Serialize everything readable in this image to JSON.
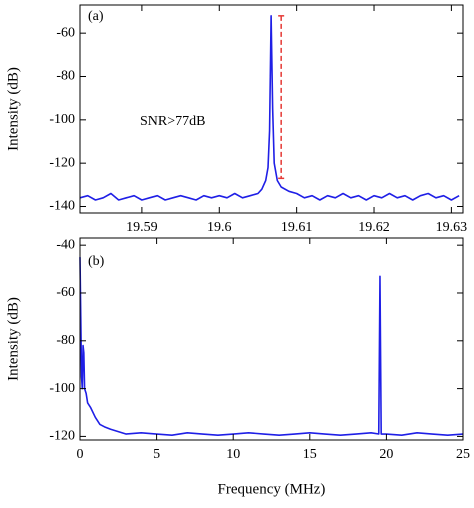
{
  "chart_data": [
    {
      "type": "line",
      "annotations": [
        "(a)",
        "SNR>77dB"
      ],
      "ylabel": "Intensity (dB)",
      "xlim": [
        19.582,
        19.6315
      ],
      "xticks": [
        19.59,
        19.6,
        19.61,
        19.62,
        19.63
      ],
      "ylim": [
        -143,
        -47
      ],
      "yticks": [
        -140,
        -120,
        -100,
        -80,
        -60
      ],
      "x": [
        19.582,
        19.583,
        19.584,
        19.585,
        19.586,
        19.587,
        19.588,
        19.589,
        19.59,
        19.591,
        19.592,
        19.593,
        19.594,
        19.595,
        19.596,
        19.597,
        19.598,
        19.599,
        19.6,
        19.601,
        19.602,
        19.603,
        19.604,
        19.605,
        19.6055,
        19.606,
        19.6063,
        19.6065,
        19.6067,
        19.6069,
        19.6071,
        19.6075,
        19.608,
        19.609,
        19.61,
        19.611,
        19.612,
        19.613,
        19.614,
        19.615,
        19.616,
        19.617,
        19.618,
        19.619,
        19.62,
        19.621,
        19.622,
        19.623,
        19.624,
        19.625,
        19.626,
        19.627,
        19.628,
        19.629,
        19.63,
        19.631
      ],
      "series": [
        {
          "color": "#1f1fe6",
          "values": [
            -136,
            -135,
            -137,
            -136,
            -134,
            -137,
            -136,
            -135,
            -137,
            -136,
            -135,
            -137,
            -136,
            -135,
            -136,
            -137,
            -135,
            -136,
            -135,
            -136,
            -134,
            -136,
            -135,
            -134,
            -132,
            -128,
            -122,
            -105,
            -52,
            -95,
            -120,
            -128,
            -131,
            -133,
            -134,
            -136,
            -135,
            -137,
            -135,
            -136,
            -134,
            -136,
            -135,
            -137,
            -135,
            -136,
            -134,
            -136,
            -135,
            -137,
            -135,
            -134,
            -136,
            -135,
            -137,
            -135
          ]
        }
      ],
      "marker": {
        "x": 19.608,
        "y": [
          -52,
          -127
        ],
        "color": "#e53935"
      }
    },
    {
      "type": "line",
      "annotations": [
        "(b)"
      ],
      "ylabel": "Intensity (dB)",
      "xlabel": "Frequency (MHz)",
      "xlim": [
        0,
        25
      ],
      "xticks": [
        0,
        5,
        10,
        15,
        20,
        25
      ],
      "ylim": [
        -121.5,
        -37
      ],
      "yticks": [
        -120,
        -100,
        -80,
        -60,
        -40
      ],
      "x": [
        0,
        0.05,
        0.1,
        0.15,
        0.2,
        0.25,
        0.3,
        0.4,
        0.5,
        0.7,
        1,
        1.3,
        1.6,
        2,
        2.5,
        3,
        4,
        5,
        6,
        7,
        8,
        9,
        10,
        11,
        12,
        13,
        14,
        15,
        16,
        17,
        18,
        19,
        19.5,
        19.58,
        19.66,
        20,
        21,
        22,
        23,
        24,
        25
      ],
      "series": [
        {
          "color": "#1f1fe6",
          "values": [
            -45,
            -70,
            -95,
            -100,
            -82,
            -85,
            -100,
            -102,
            -106,
            -108,
            -112,
            -115,
            -116,
            -117,
            -118,
            -119,
            -118.5,
            -119,
            -119.5,
            -118.5,
            -119,
            -119.5,
            -119,
            -118.5,
            -119,
            -119.5,
            -119,
            -118.5,
            -119,
            -119.5,
            -119,
            -118.5,
            -119,
            -53,
            -119,
            -119,
            -119.5,
            -118.5,
            -119,
            -119.5,
            -119
          ]
        }
      ]
    }
  ]
}
